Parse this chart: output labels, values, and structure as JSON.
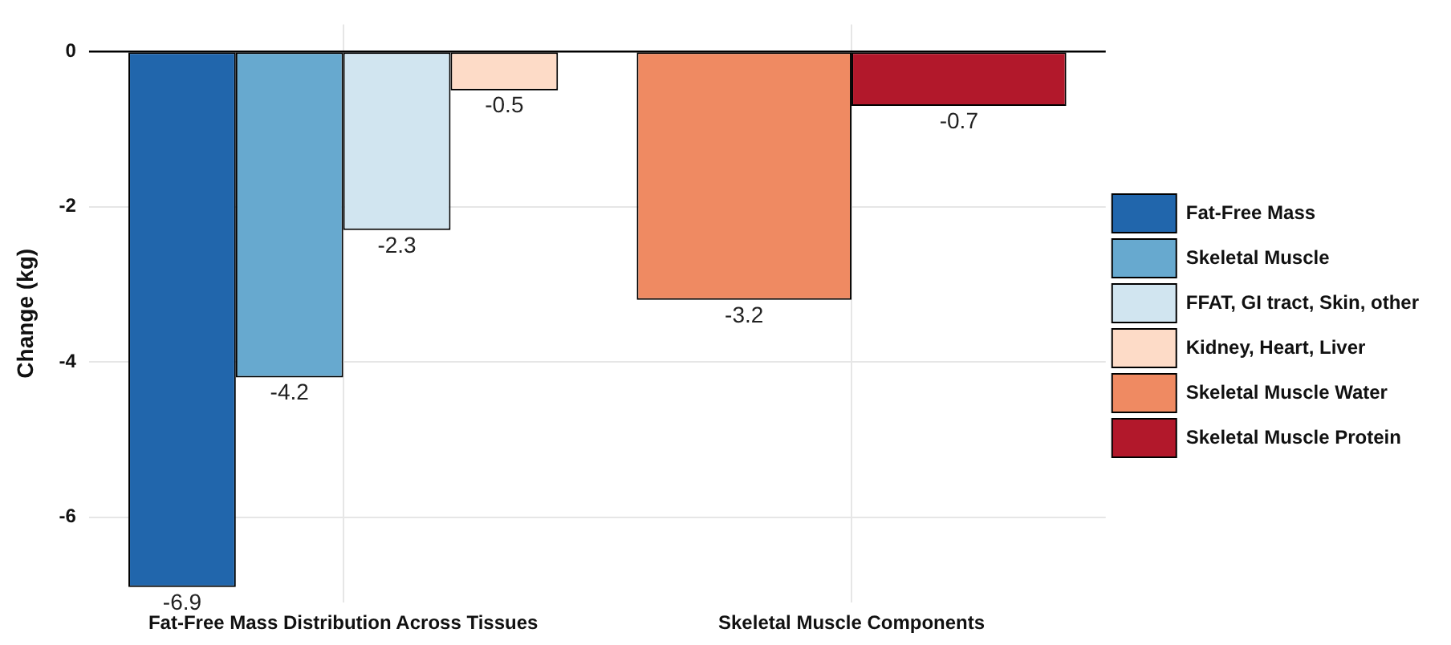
{
  "chart_data": {
    "type": "bar",
    "ylabel": "Change (kg)",
    "categories": [
      "Fat-Free Mass Distribution Across Tissues",
      "Skeletal Muscle Components"
    ],
    "series": [
      {
        "name": "Fat-Free Mass",
        "color": "#2166ac",
        "values": [
          -6.9,
          null
        ]
      },
      {
        "name": "Skeletal Muscle",
        "color": "#67a9cf",
        "values": [
          -4.2,
          null
        ]
      },
      {
        "name": "FFAT, GI tract, Skin, other",
        "color": "#d1e5f0",
        "values": [
          -2.3,
          null
        ]
      },
      {
        "name": "Kidney, Heart, Liver",
        "color": "#fddbc7",
        "values": [
          -0.5,
          null
        ]
      },
      {
        "name": "Skeletal Muscle Water",
        "color": "#ef8a62",
        "values": [
          null,
          -3.2
        ]
      },
      {
        "name": "Skeletal Muscle Protein",
        "color": "#b2182b",
        "values": [
          null,
          -0.7
        ]
      }
    ],
    "ylim": [
      -7.1,
      0.35
    ],
    "yticks": [
      0,
      -2,
      -4,
      -6
    ],
    "grid": true,
    "legend": "right",
    "data_labels": true,
    "ref_lines": [
      {
        "axis": "y",
        "value": 0,
        "color": "#000000"
      }
    ]
  }
}
